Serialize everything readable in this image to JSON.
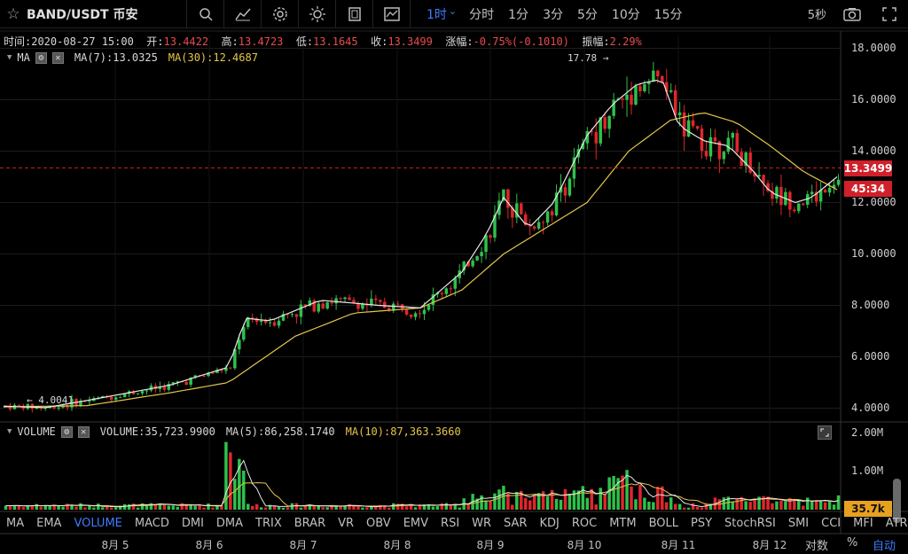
{
  "toolbar": {
    "star_icon": "star-icon",
    "symbol": "BAND/USDT 币安",
    "icons": [
      "search-icon",
      "chart-type-icon",
      "gear-icon",
      "theme-sun-icon",
      "fullscreen-icon",
      "indicator-icon"
    ],
    "intervals": [
      {
        "label": "1时",
        "active": true
      },
      {
        "label": "分时",
        "active": false
      },
      {
        "label": "1分",
        "active": false
      },
      {
        "label": "3分",
        "active": false
      },
      {
        "label": "5分",
        "active": false
      },
      {
        "label": "10分",
        "active": false
      },
      {
        "label": "15分",
        "active": false
      }
    ],
    "refresh": "5秒"
  },
  "info": {
    "time_label": "时间:",
    "time": "2020-08-27 15:00",
    "open_label": "开:",
    "open": "13.4422",
    "high_label": "高:",
    "high": "13.4723",
    "low_label": "低:",
    "low": "13.1645",
    "close_label": "收:",
    "close": "13.3499",
    "change_label": "涨幅:",
    "change": "-0.75%(-0.1010)",
    "amp_label": "振幅:",
    "amp": "2.29%"
  },
  "ma_legend": {
    "name": "MA",
    "ma7": "MA(7):13.0325",
    "ma30": "MA(30):12.4687"
  },
  "vol_legend": {
    "name": "VOLUME",
    "volume": "VOLUME:35,723.9900",
    "ma5": "MA(5):86,258.1740",
    "ma10": "MA(10):87,363.3660"
  },
  "price_axis": [
    "18.0000",
    "16.0000",
    "14.0000",
    "12.0000",
    "10.0000",
    "8.0000",
    "6.0000",
    "4.0000"
  ],
  "current_price": "13.3499",
  "countdown": "45:34",
  "high_marker": "17.78 →",
  "low_marker": "← 4.0041",
  "volume_axis": [
    "2.00M",
    "1.00M"
  ],
  "current_volume": "35.7k",
  "indicators": [
    {
      "label": "MA",
      "active": false
    },
    {
      "label": "EMA",
      "active": false
    },
    {
      "label": "VOLUME",
      "active": true
    },
    {
      "label": "MACD",
      "active": false
    },
    {
      "label": "DMI",
      "active": false
    },
    {
      "label": "DMA",
      "active": false
    },
    {
      "label": "TRIX",
      "active": false
    },
    {
      "label": "BRAR",
      "active": false
    },
    {
      "label": "VR",
      "active": false
    },
    {
      "label": "OBV",
      "active": false
    },
    {
      "label": "EMV",
      "active": false
    },
    {
      "label": "RSI",
      "active": false
    },
    {
      "label": "WR",
      "active": false
    },
    {
      "label": "SAR",
      "active": false
    },
    {
      "label": "KDJ",
      "active": false
    },
    {
      "label": "ROC",
      "active": false
    },
    {
      "label": "MTM",
      "active": false
    },
    {
      "label": "BOLL",
      "active": false
    },
    {
      "label": "PSY",
      "active": false
    },
    {
      "label": "StochRSI",
      "active": false
    },
    {
      "label": "SMI",
      "active": false
    },
    {
      "label": "CCI",
      "active": false
    },
    {
      "label": "MFI",
      "active": false
    },
    {
      "label": "ATR",
      "active": false
    }
  ],
  "dates": [
    "8月 5",
    "8月 6",
    "8月 7",
    "8月 8",
    "8月 9",
    "8月 10",
    "8月 11",
    "8月 12"
  ],
  "scale_options": {
    "log": "对数",
    "percent": "%",
    "auto": "自动"
  },
  "colors": {
    "up": "#2ec14b",
    "down": "#e0262c",
    "ma7": "#e8e8e8",
    "ma30": "#e5c64b",
    "accent": "#3f7cff"
  },
  "chart_data": {
    "type": "candlestick",
    "price_ylim": [
      3.5,
      18.5
    ],
    "ma7_path": [
      [
        0,
        4.08
      ],
      [
        0.05,
        4.02
      ],
      [
        0.1,
        4.3
      ],
      [
        0.15,
        4.6
      ],
      [
        0.2,
        4.9
      ],
      [
        0.25,
        5.4
      ],
      [
        0.27,
        5.6
      ],
      [
        0.29,
        7.5
      ],
      [
        0.32,
        7.4
      ],
      [
        0.38,
        8.2
      ],
      [
        0.45,
        8.0
      ],
      [
        0.5,
        7.9
      ],
      [
        0.55,
        9.3
      ],
      [
        0.58,
        10.8
      ],
      [
        0.6,
        12.2
      ],
      [
        0.63,
        11.0
      ],
      [
        0.66,
        12.0
      ],
      [
        0.7,
        14.6
      ],
      [
        0.73,
        15.8
      ],
      [
        0.76,
        16.6
      ],
      [
        0.79,
        16.8
      ],
      [
        0.81,
        15.0
      ],
      [
        0.84,
        14.4
      ],
      [
        0.87,
        14.2
      ],
      [
        0.9,
        13.2
      ],
      [
        0.92,
        12.4
      ],
      [
        0.95,
        12.0
      ],
      [
        0.97,
        12.2
      ],
      [
        1.0,
        13.0
      ]
    ],
    "ma30_path": [
      [
        0,
        4.05
      ],
      [
        0.1,
        4.1
      ],
      [
        0.2,
        4.6
      ],
      [
        0.27,
        5.0
      ],
      [
        0.35,
        6.8
      ],
      [
        0.42,
        7.7
      ],
      [
        0.5,
        7.9
      ],
      [
        0.55,
        8.6
      ],
      [
        0.6,
        10.0
      ],
      [
        0.65,
        11.0
      ],
      [
        0.7,
        12.0
      ],
      [
        0.75,
        14.0
      ],
      [
        0.8,
        15.2
      ],
      [
        0.84,
        15.5
      ],
      [
        0.88,
        15.1
      ],
      [
        0.92,
        14.2
      ],
      [
        0.96,
        13.2
      ],
      [
        1.0,
        12.5
      ]
    ]
  }
}
